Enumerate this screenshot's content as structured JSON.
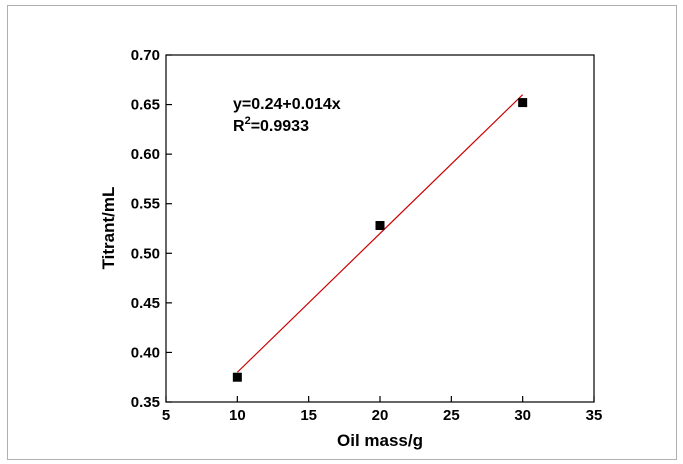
{
  "chart_data": {
    "type": "scatter",
    "xlabel": "Oil mass/g",
    "ylabel": "Titrant/mL",
    "xlim": [
      5,
      35
    ],
    "ylim": [
      0.35,
      0.7
    ],
    "x_ticks": [
      "5",
      "10",
      "15",
      "20",
      "25",
      "30",
      "35"
    ],
    "y_ticks": [
      "0.35",
      "0.40",
      "0.45",
      "0.50",
      "0.55",
      "0.60",
      "0.65",
      "0.70"
    ],
    "grid": false,
    "series": [
      {
        "points": [
          {
            "x": 10,
            "y": 0.375
          },
          {
            "x": 20,
            "y": 0.528
          },
          {
            "x": 30,
            "y": 0.652
          }
        ],
        "marker": "square",
        "color": "#000000"
      }
    ],
    "fit_line": {
      "x_start": 10,
      "x_end": 30,
      "intercept": 0.24,
      "slope": 0.014,
      "color": "#cc0000"
    },
    "annotations": {
      "equation": "y=0.24+0.014x",
      "r2_prefix": "R",
      "r2_sup": "2",
      "r2_value": "=0.9933"
    }
  }
}
